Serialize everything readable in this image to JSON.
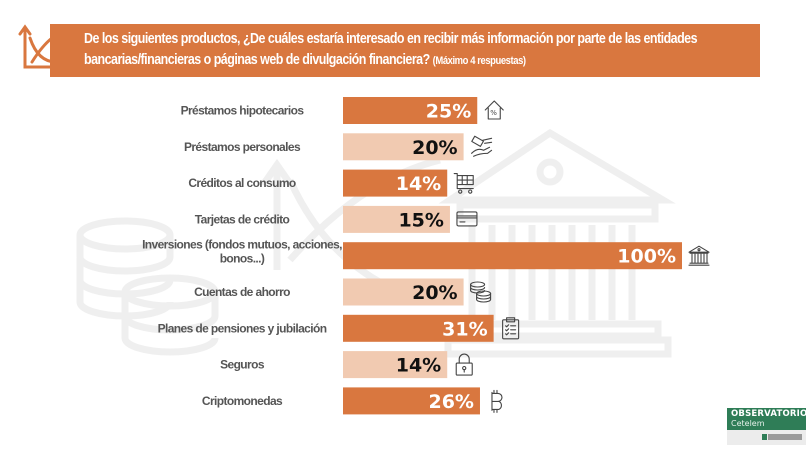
{
  "header": {
    "line1": "De los siguientes productos, ¿De cuáles estaría interesado en recibir más información por parte de las entidades",
    "line2": "bancarias/financieras o páginas web de divulgación financiera?",
    "note": "(Máximo 4 respuestas)",
    "icon": "chart-axes-icon"
  },
  "colors": {
    "accent": "#d9773f",
    "accent_light": "#f1cab1",
    "label_text": "#555555",
    "watermark": "#efefef"
  },
  "chart_data": {
    "type": "bar",
    "orientation": "horizontal",
    "title": "De los siguientes productos, ¿De cuáles estaría interesado en recibir más información por parte de las entidades bancarias/financieras o páginas web de divulgación financiera? (Máximo 4 respuestas)",
    "xlabel": "",
    "ylabel": "",
    "categories": [
      "Préstamos hipotecarios",
      "Préstamos personales",
      "Créditos al consumo",
      "Tarjetas de crédito",
      "Inversiones (fondos mutuos, acciones, bonos...)",
      "Cuentas de ahorro",
      "Planes de pensiones y jubilación",
      "Seguros",
      "Criptomonedas"
    ],
    "category_lines": [
      [
        "Préstamos hipotecarios"
      ],
      [
        "Préstamos personales"
      ],
      [
        "Créditos al consumo"
      ],
      [
        "Tarjetas de crédito"
      ],
      [
        "Inversiones (fondos mutuos, acciones,",
        "bonos...)"
      ],
      [
        "Cuentas de ahorro"
      ],
      [
        "Planes de pensiones y jubilación"
      ],
      [
        "Seguros"
      ],
      [
        "Criptomonedas"
      ]
    ],
    "values": [
      25,
      20,
      14,
      15,
      100,
      20,
      31,
      14,
      26
    ],
    "labels": [
      "25%",
      "20%",
      "14%",
      "15%",
      "100%",
      "20%",
      "31%",
      "14%",
      "26%"
    ],
    "bar_style": [
      "dark",
      "light",
      "dark",
      "light",
      "dark",
      "light",
      "dark",
      "light",
      "dark"
    ],
    "icons": [
      "house-percent-icon",
      "hand-money-icon",
      "shopping-cart-icon",
      "credit-card-icon",
      "bank-icon",
      "coins-icon",
      "clipboard-checklist-icon",
      "padlock-icon",
      "bitcoin-icon"
    ],
    "xlim": [
      0,
      100
    ],
    "grid": false,
    "legend": "none"
  },
  "logo": {
    "line1": "OBSERVATORIO",
    "line2": "Cetelem"
  }
}
